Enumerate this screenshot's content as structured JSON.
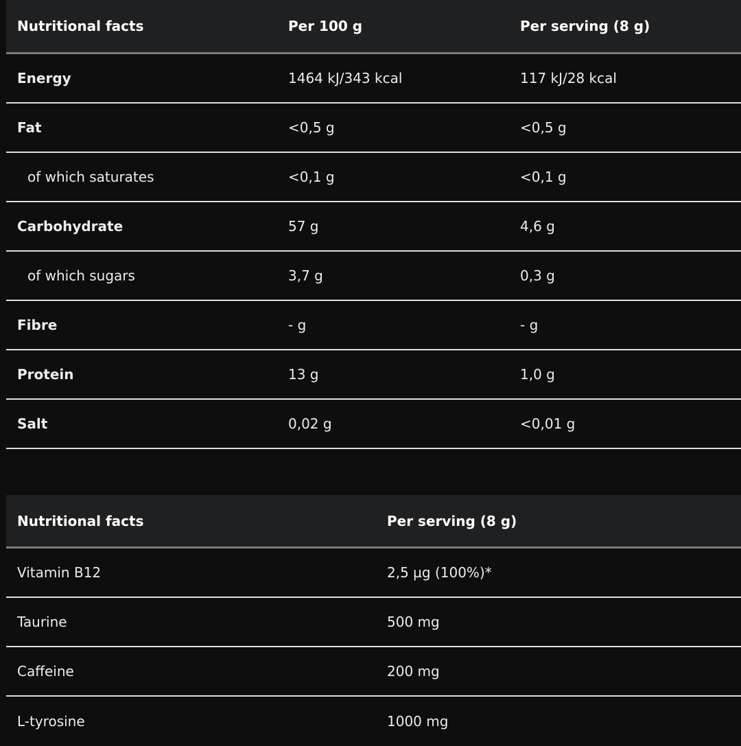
{
  "table1": {
    "headers": [
      "Nutritional facts",
      "Per 100 g",
      "Per serving (8 g)"
    ],
    "rows": [
      {
        "label": "Energy",
        "per100": "1464 kJ/343 kcal",
        "serving": "117 kJ/28 kcal"
      },
      {
        "label": "Fat",
        "per100": "<0,5 g",
        "serving": "<0,5 g"
      },
      {
        "label": "of which saturates",
        "per100": "<0,1 g",
        "serving": "<0,1 g"
      },
      {
        "label": "Carbohydrate",
        "per100": "57 g",
        "serving": "4,6 g"
      },
      {
        "label": "of which sugars",
        "per100": "3,7 g",
        "serving": "0,3 g"
      },
      {
        "label": "Fibre",
        "per100": "- g",
        "serving": "- g"
      },
      {
        "label": "Protein",
        "per100": "13 g",
        "serving": "1,0 g"
      },
      {
        "label": "Salt",
        "per100": "0,02 g",
        "serving": "<0,01 g"
      }
    ]
  },
  "table2": {
    "headers": [
      "Nutritional facts",
      "Per serving (8 g)"
    ],
    "rows": [
      {
        "label": "Vitamin B12",
        "serving": "2,5 µg (100%)*"
      },
      {
        "label": "Taurine",
        "serving": "500 mg"
      },
      {
        "label": "Caffeine",
        "serving": "200 mg"
      },
      {
        "label": "L-tyrosine",
        "serving": "1000 mg"
      }
    ]
  }
}
